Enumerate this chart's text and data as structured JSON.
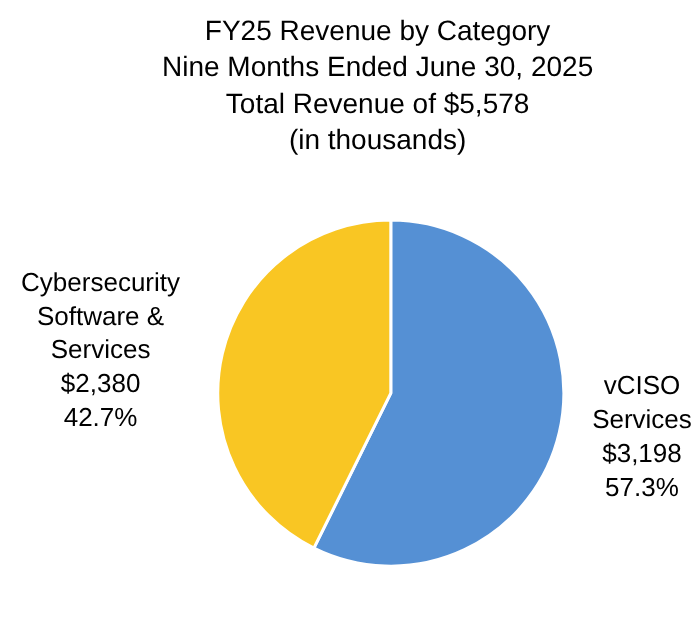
{
  "chart_data": {
    "type": "pie",
    "title": "FY25 Revenue by Category\nNine Months Ended June 30, 2025\nTotal Revenue of $5,578\n(in thousands)",
    "categories": [
      "vCISO Services",
      "Cybersecurity Software & Services"
    ],
    "values": [
      3198,
      2380
    ],
    "colors": [
      "#5590d4",
      "#f9c623"
    ],
    "value_labels": [
      "$3,198\n57.3%",
      "$2,380\n42.7%"
    ],
    "legend": false
  }
}
